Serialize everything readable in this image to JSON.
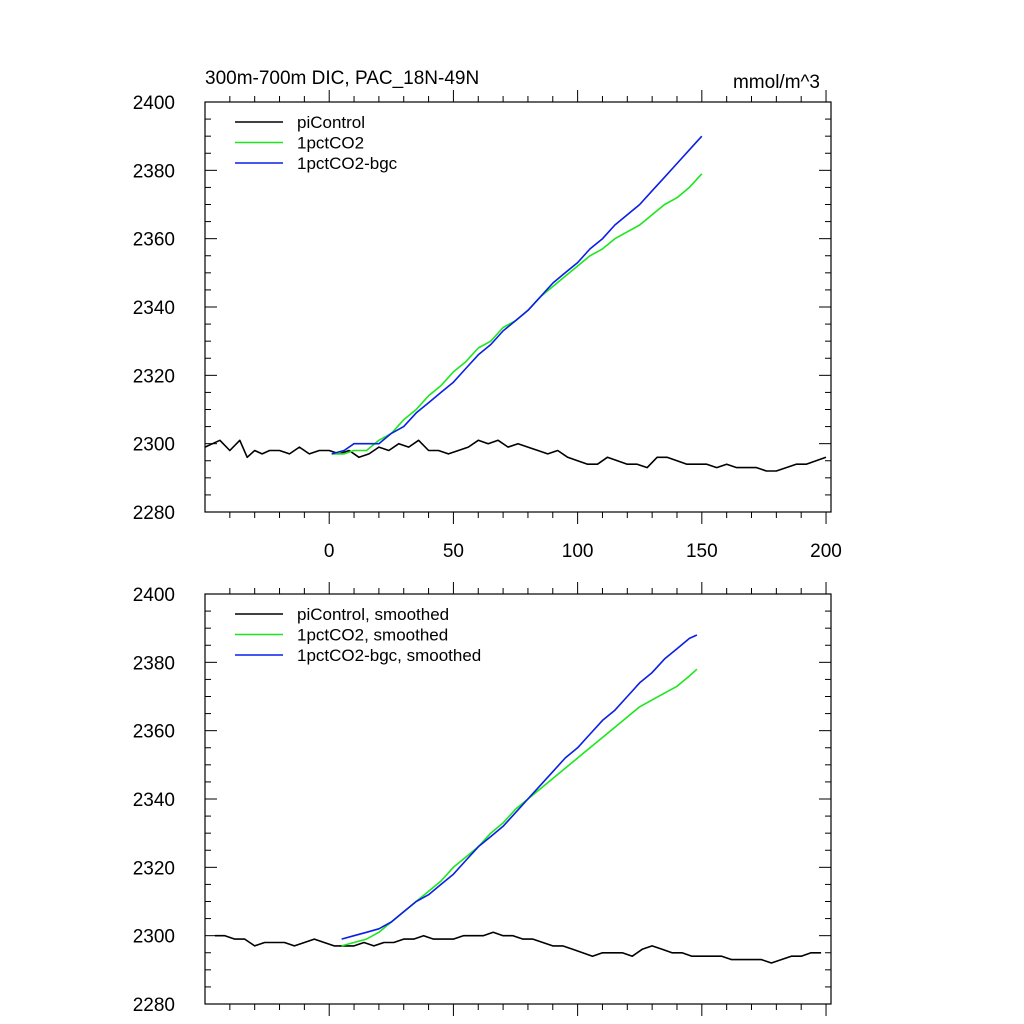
{
  "chart_data": [
    {
      "type": "line",
      "title": "300m-700m DIC, PAC_18N-49N",
      "units": "mmol/m^3",
      "xlim": [
        -50,
        202
      ],
      "ylim": [
        2280,
        2400
      ],
      "xticks": [
        0,
        50,
        100,
        150,
        200
      ],
      "yticks": [
        2280,
        2300,
        2320,
        2340,
        2360,
        2380,
        2400
      ],
      "show_x_tick_labels": true,
      "legend_position": "top-left",
      "series": [
        {
          "name": "piControl",
          "color": "#000000",
          "x": [
            -50,
            -47,
            -44,
            -40,
            -36,
            -33,
            -30,
            -27,
            -24,
            -20,
            -16,
            -12,
            -8,
            -4,
            0,
            4,
            8,
            12,
            16,
            20,
            24,
            28,
            32,
            36,
            40,
            44,
            48,
            52,
            56,
            60,
            64,
            68,
            72,
            76,
            80,
            84,
            88,
            92,
            96,
            100,
            104,
            108,
            112,
            116,
            120,
            124,
            128,
            132,
            136,
            140,
            144,
            148,
            152,
            156,
            160,
            164,
            168,
            172,
            176,
            180,
            184,
            188,
            192,
            196,
            200
          ],
          "values": [
            2299,
            2300,
            2301,
            2298,
            2301,
            2296,
            2298,
            2297,
            2298,
            2298,
            2297,
            2299,
            2297,
            2298,
            2298,
            2297,
            2298,
            2296,
            2297,
            2299,
            2298,
            2300,
            2299,
            2301,
            2298,
            2298,
            2297,
            2298,
            2299,
            2301,
            2300,
            2301,
            2299,
            2300,
            2299,
            2298,
            2297,
            2298,
            2296,
            2295,
            2294,
            2294,
            2296,
            2295,
            2294,
            2294,
            2293,
            2296,
            2296,
            2295,
            2294,
            2294,
            2294,
            2293,
            2294,
            2293,
            2293,
            2293,
            2292,
            2292,
            2293,
            2294,
            2294,
            2295,
            2296
          ]
        },
        {
          "name": "1pctCO2",
          "color": "#1ee61e",
          "x": [
            1,
            6,
            10,
            15,
            20,
            25,
            30,
            35,
            40,
            45,
            50,
            55,
            60,
            65,
            70,
            75,
            80,
            85,
            90,
            95,
            100,
            105,
            110,
            115,
            120,
            125,
            130,
            135,
            140,
            145,
            150
          ],
          "values": [
            2297,
            2297,
            2298,
            2298,
            2301,
            2303,
            2307,
            2310,
            2314,
            2317,
            2321,
            2324,
            2328,
            2330,
            2334,
            2336,
            2339,
            2343,
            2346,
            2349,
            2352,
            2355,
            2357,
            2360,
            2362,
            2364,
            2367,
            2370,
            2372,
            2375,
            2379
          ]
        },
        {
          "name": "1pctCO2-bgc",
          "color": "#0a1ee6",
          "x": [
            1,
            6,
            10,
            15,
            20,
            25,
            30,
            35,
            40,
            45,
            50,
            55,
            60,
            65,
            70,
            75,
            80,
            85,
            90,
            95,
            100,
            105,
            110,
            115,
            120,
            125,
            130,
            135,
            140,
            145,
            150
          ],
          "values": [
            2297,
            2298,
            2300,
            2300,
            2300,
            2303,
            2305,
            2309,
            2312,
            2315,
            2318,
            2322,
            2326,
            2329,
            2333,
            2336,
            2339,
            2343,
            2347,
            2350,
            2353,
            2357,
            2360,
            2364,
            2367,
            2370,
            2374,
            2378,
            2382,
            2386,
            2390
          ]
        }
      ]
    },
    {
      "type": "line",
      "xlim": [
        -50,
        202
      ],
      "ylim": [
        2280,
        2400
      ],
      "xticks": [
        0,
        50,
        100,
        150,
        200
      ],
      "yticks": [
        2280,
        2300,
        2320,
        2340,
        2360,
        2380,
        2400
      ],
      "show_x_tick_labels": false,
      "legend_position": "top-left",
      "series": [
        {
          "name": "piControl, smoothed",
          "color": "#000000",
          "x": [
            -46,
            -42,
            -38,
            -34,
            -30,
            -26,
            -22,
            -18,
            -14,
            -10,
            -6,
            -2,
            2,
            6,
            10,
            14,
            18,
            22,
            26,
            30,
            34,
            38,
            42,
            46,
            50,
            54,
            58,
            62,
            66,
            70,
            74,
            78,
            82,
            86,
            90,
            94,
            98,
            102,
            106,
            110,
            114,
            118,
            122,
            126,
            130,
            134,
            138,
            142,
            146,
            150,
            154,
            158,
            162,
            166,
            170,
            174,
            178,
            182,
            186,
            190,
            194,
            198
          ],
          "values": [
            2300,
            2300,
            2299,
            2299,
            2297,
            2298,
            2298,
            2298,
            2297,
            2298,
            2299,
            2298,
            2297,
            2297,
            2297,
            2298,
            2297,
            2298,
            2298,
            2299,
            2299,
            2300,
            2299,
            2299,
            2299,
            2300,
            2300,
            2300,
            2301,
            2300,
            2300,
            2299,
            2299,
            2298,
            2297,
            2297,
            2296,
            2295,
            2294,
            2295,
            2295,
            2295,
            2294,
            2296,
            2297,
            2296,
            2295,
            2295,
            2294,
            2294,
            2294,
            2294,
            2293,
            2293,
            2293,
            2293,
            2292,
            2293,
            2294,
            2294,
            2295,
            2295
          ]
        },
        {
          "name": "1pctCO2, smoothed",
          "color": "#1ee61e",
          "x": [
            5,
            10,
            15,
            20,
            25,
            30,
            35,
            40,
            45,
            50,
            55,
            60,
            65,
            70,
            75,
            80,
            85,
            90,
            95,
            100,
            105,
            110,
            115,
            120,
            125,
            130,
            135,
            140,
            145,
            148
          ],
          "values": [
            2297,
            2298,
            2299,
            2301,
            2304,
            2307,
            2310,
            2313,
            2316,
            2320,
            2323,
            2326,
            2330,
            2333,
            2337,
            2340,
            2343,
            2346,
            2349,
            2352,
            2355,
            2358,
            2361,
            2364,
            2367,
            2369,
            2371,
            2373,
            2376,
            2378
          ]
        },
        {
          "name": "1pctCO2-bgc, smoothed",
          "color": "#0a1ee6",
          "x": [
            5,
            10,
            15,
            20,
            25,
            30,
            35,
            40,
            45,
            50,
            55,
            60,
            65,
            70,
            75,
            80,
            85,
            90,
            95,
            100,
            105,
            110,
            115,
            120,
            125,
            130,
            135,
            140,
            145,
            148
          ],
          "values": [
            2299,
            2300,
            2301,
            2302,
            2304,
            2307,
            2310,
            2312,
            2315,
            2318,
            2322,
            2326,
            2329,
            2332,
            2336,
            2340,
            2344,
            2348,
            2352,
            2355,
            2359,
            2363,
            2366,
            2370,
            2374,
            2377,
            2381,
            2384,
            2387,
            2388
          ]
        }
      ]
    }
  ]
}
